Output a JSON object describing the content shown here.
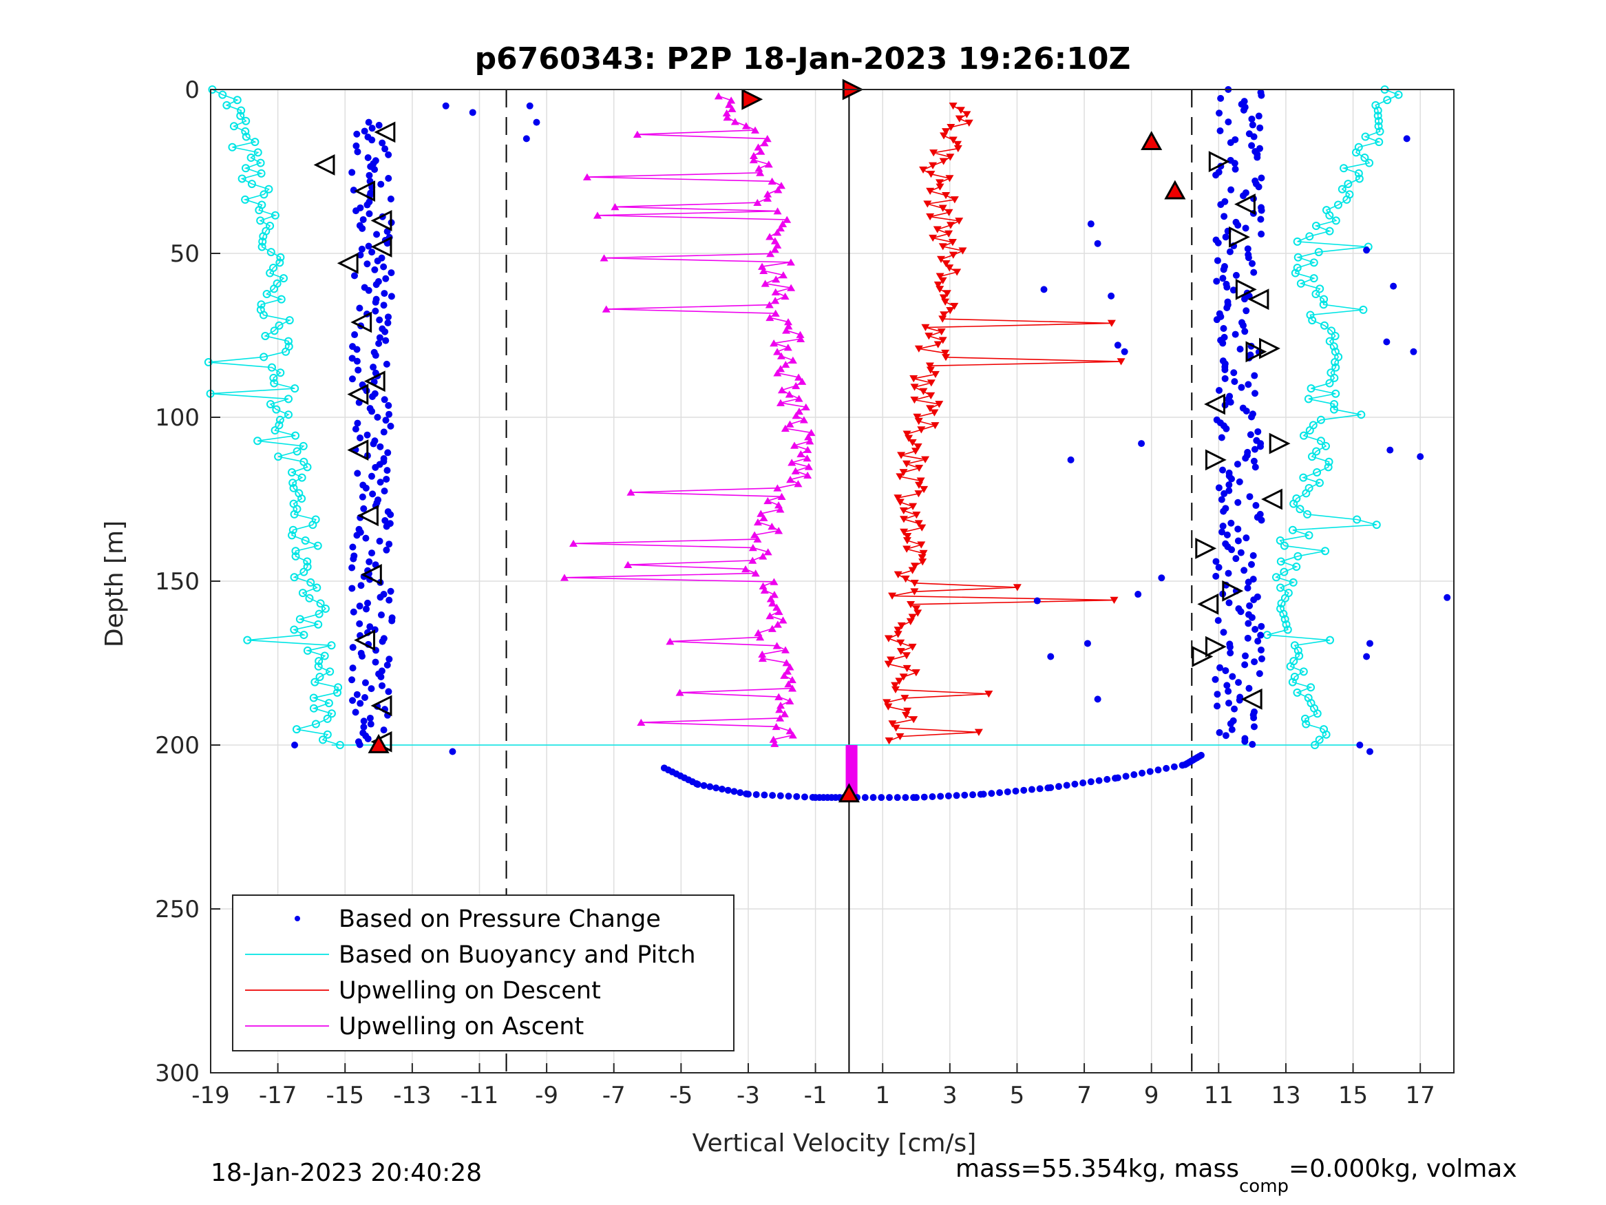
{
  "chart_data": {
    "type": "scatter",
    "title": "p6760343: P2P 18-Jan-2023 19:26:10Z",
    "xlabel": "Vertical Velocity [cm/s]",
    "ylabel": "Depth [m]",
    "xlim": [
      -19,
      18
    ],
    "ylim": [
      0,
      300
    ],
    "y_reversed": true,
    "grid": true,
    "x_ticks": [
      -19,
      -17,
      -15,
      -13,
      -11,
      -9,
      -7,
      -5,
      -3,
      -1,
      1,
      3,
      5,
      7,
      9,
      11,
      13,
      15,
      17
    ],
    "y_ticks": [
      0,
      50,
      100,
      150,
      200,
      250,
      300
    ],
    "reference_lines": {
      "solid_x": 0,
      "dashed_x": [
        -10.2,
        10.2
      ]
    },
    "legend_placement": "bottom-left",
    "series": [
      {
        "name": "Based on Pressure Change",
        "color": "#0000ee",
        "marker": "dot",
        "profiles": [
          {
            "x_mean": -14.2,
            "depth": [
              10,
              200
            ],
            "jitter": 0.6
          },
          {
            "x_mean": 11.6,
            "depth": [
              0,
              200
            ],
            "jitter": 0.7
          }
        ],
        "bottom_arc": {
          "x": [
            -5.5,
            -4.5,
            -3.0,
            -1.0,
            0.0,
            2.0,
            4.0,
            6.0,
            8.0,
            10.0,
            10.5
          ],
          "depth": [
            207,
            212,
            215,
            216,
            216,
            216,
            215,
            213,
            210,
            206,
            203
          ]
        },
        "outliers": [
          {
            "x": -11.8,
            "y": 202
          },
          {
            "x": -16.5,
            "y": 200
          },
          {
            "x": -12.0,
            "y": 5
          },
          {
            "x": -11.2,
            "y": 7
          },
          {
            "x": -9.5,
            "y": 5
          },
          {
            "x": -9.6,
            "y": 15
          },
          {
            "x": -9.3,
            "y": 10
          },
          {
            "x": 5.8,
            "y": 61
          },
          {
            "x": 6.6,
            "y": 113
          },
          {
            "x": 7.2,
            "y": 41
          },
          {
            "x": 7.4,
            "y": 47
          },
          {
            "x": 7.8,
            "y": 63
          },
          {
            "x": 8.0,
            "y": 78
          },
          {
            "x": 8.2,
            "y": 80
          },
          {
            "x": 8.7,
            "y": 108
          },
          {
            "x": 8.6,
            "y": 154
          },
          {
            "x": 5.6,
            "y": 156
          },
          {
            "x": 6.0,
            "y": 173
          },
          {
            "x": 7.1,
            "y": 169
          },
          {
            "x": 7.4,
            "y": 186
          },
          {
            "x": 9.3,
            "y": 149
          },
          {
            "x": 15.4,
            "y": 49
          },
          {
            "x": 16.2,
            "y": 60
          },
          {
            "x": 16.0,
            "y": 77
          },
          {
            "x": 16.6,
            "y": 15
          },
          {
            "x": 16.8,
            "y": 80
          },
          {
            "x": 17.8,
            "y": 155
          },
          {
            "x": 16.1,
            "y": 110
          },
          {
            "x": 17.0,
            "y": 112
          },
          {
            "x": 15.5,
            "y": 169
          },
          {
            "x": 15.4,
            "y": 173
          },
          {
            "x": 15.2,
            "y": 200
          },
          {
            "x": 15.5,
            "y": 202
          }
        ]
      },
      {
        "name": "Based on Buoyancy and Pitch",
        "color": "#00e5e5",
        "marker": "circle-line",
        "profiles": [
          {
            "x_mean": [
              -18.5,
              -17.4,
              -17.0,
              -16.6,
              -16.2,
              -15.8,
              -15.4
            ],
            "depth": [
              0,
              40,
              80,
              110,
              140,
              170,
              200
            ]
          },
          {
            "x_mean": [
              16.0,
              15.2,
              13.6,
              14.2,
              13.8,
              12.6,
              14.2
            ],
            "depth": [
              0,
              20,
              50,
              80,
              120,
              160,
              200
            ]
          }
        ]
      },
      {
        "name": "Upwelling on Descent",
        "color": "#ee0000",
        "marker": "triangle-down",
        "profile": {
          "x_mean": [
            3.5,
            2.6,
            3.0,
            2.5,
            2.0,
            1.8,
            1.6,
            1.5
          ],
          "depth": [
            5,
            25,
            50,
            80,
            110,
            140,
            170,
            200
          ]
        }
      },
      {
        "name": "Upwelling on Ascent",
        "color": "#ee00ee",
        "marker": "triangle-up",
        "profile": {
          "x_mean": [
            -4.0,
            -2.4,
            -2.2,
            -1.8,
            -1.4,
            -2.8,
            -2.2,
            -2.0
          ],
          "depth": [
            2,
            20,
            50,
            80,
            115,
            140,
            170,
            200
          ]
        }
      }
    ]
  },
  "footer": {
    "left_text": "18-Jan-2023 20:40:28",
    "right_text_a": "mass=55.354kg, mass",
    "right_text_sub": "comp",
    "right_text_b": "=0.000kg, volmax"
  }
}
